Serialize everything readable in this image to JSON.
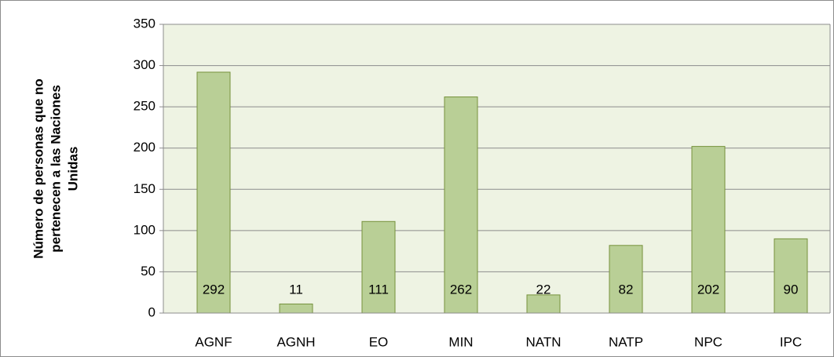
{
  "chart_data": {
    "type": "bar",
    "ylabel": [
      "Número de personas que no",
      "pertenecen a las Naciones",
      "Unidas"
    ],
    "categories": [
      "AGNF",
      "AGNH",
      "EO",
      "MIN",
      "NATN",
      "NATP",
      "NPC",
      "IPC"
    ],
    "values": [
      292,
      11,
      111,
      262,
      22,
      82,
      202,
      90
    ],
    "color": "#b9cf96",
    "edge_color": "#76923c",
    "ylim": [
      0,
      350
    ],
    "yticks": [
      0,
      50,
      100,
      150,
      200,
      250,
      300,
      350
    ],
    "grid": true
  }
}
